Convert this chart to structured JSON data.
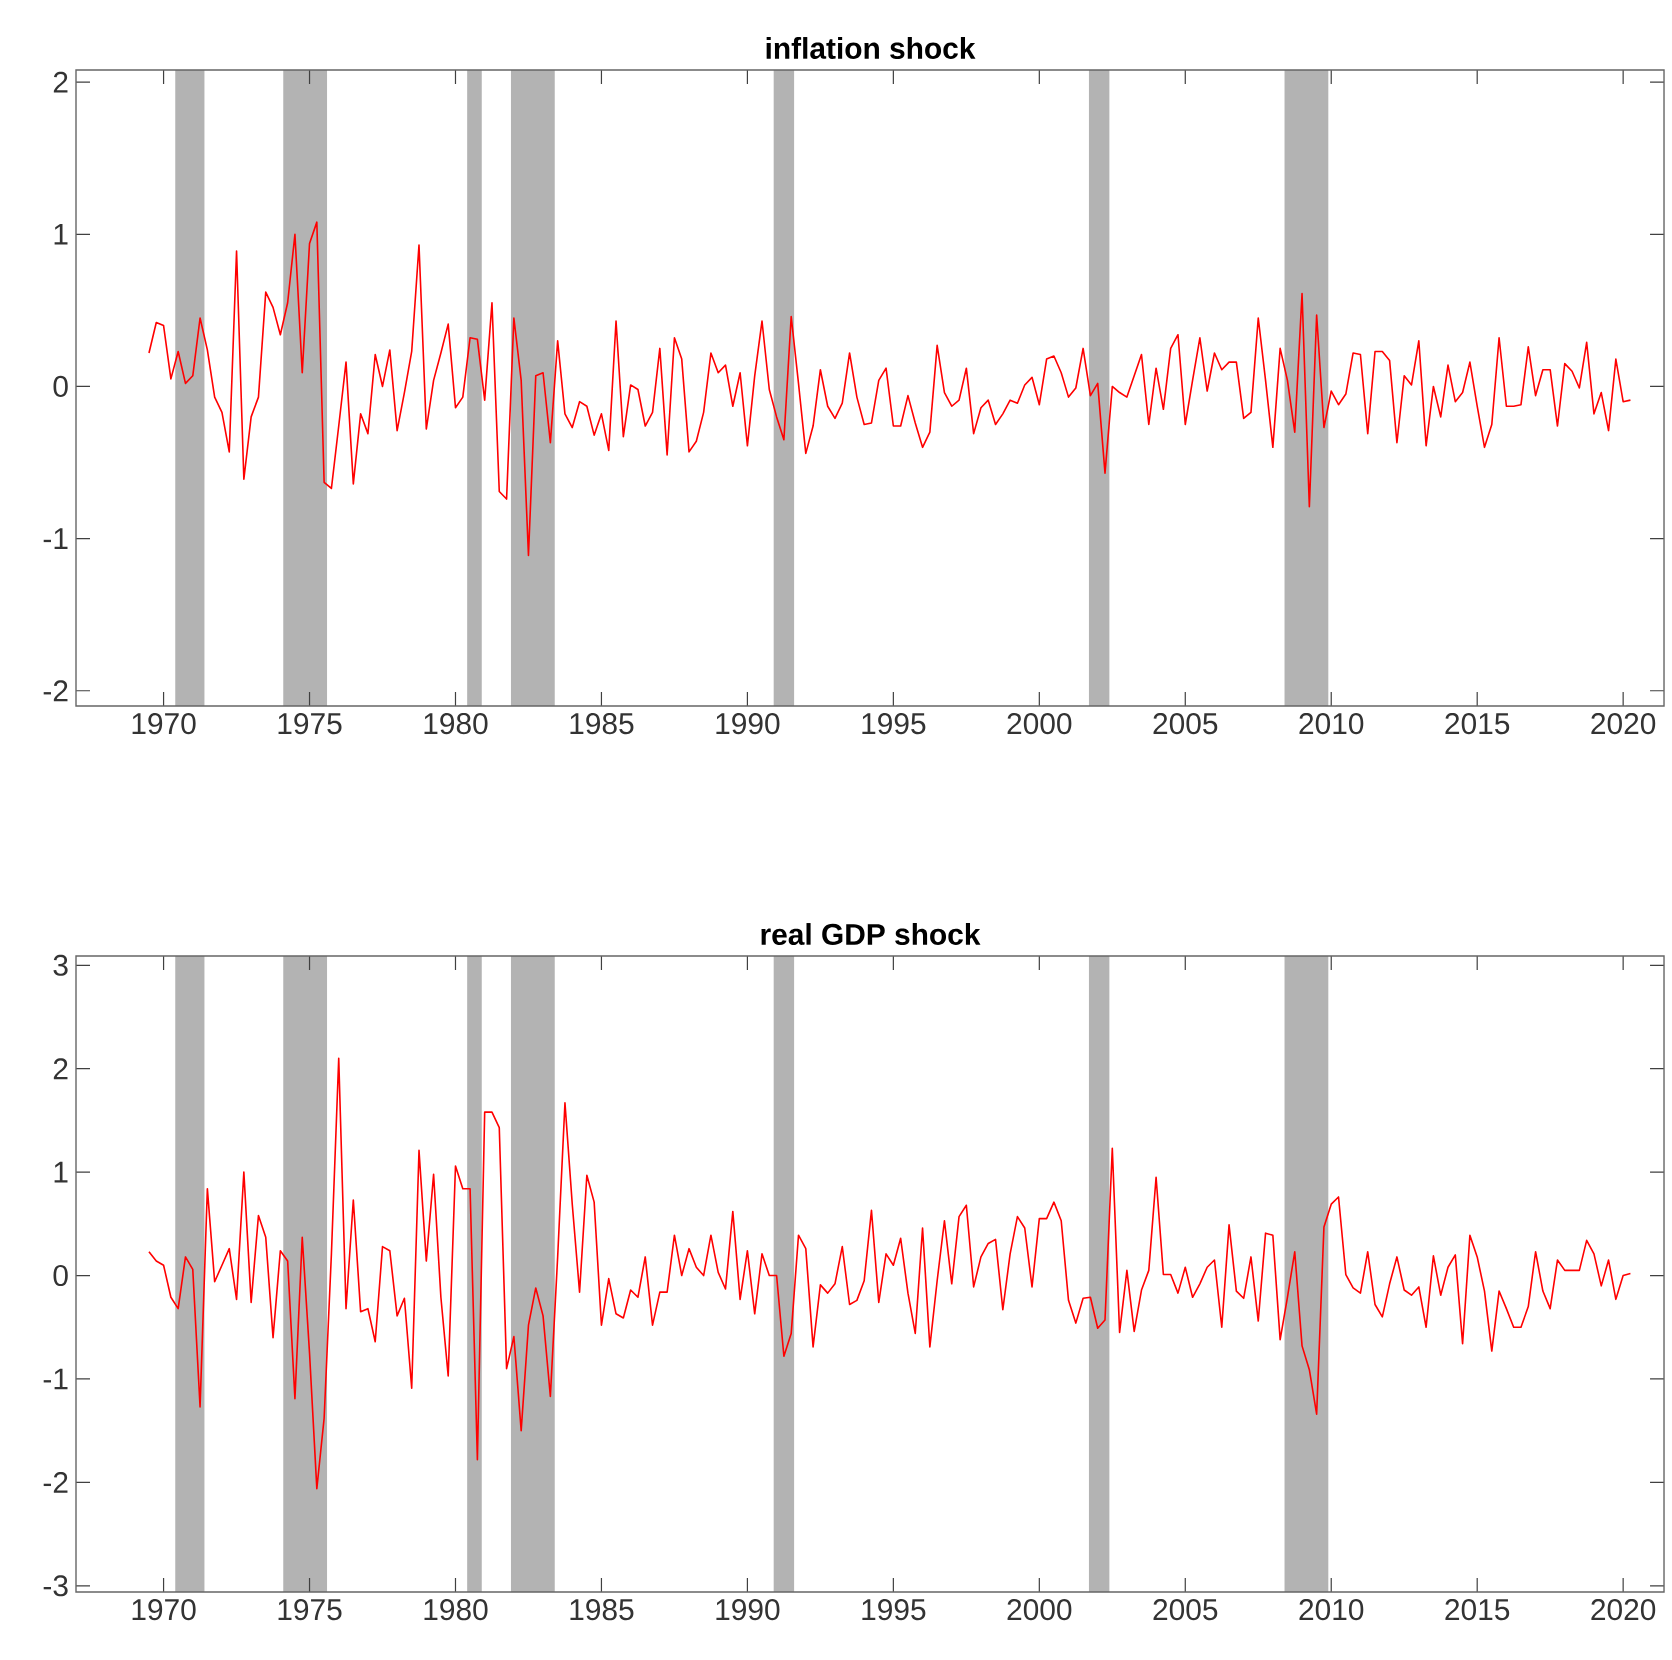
{
  "chart_data": [
    {
      "type": "line",
      "title": "inflation shock",
      "line_style": "solid",
      "xlim": [
        1967,
        2021.4
      ],
      "xticks": [
        1970,
        1975,
        1980,
        1985,
        1990,
        1995,
        2000,
        2005,
        2010,
        2015,
        2020
      ],
      "ylim": [
        -2.1,
        2.08
      ],
      "yticks": [
        -2,
        -1,
        0,
        1,
        2
      ],
      "bands": [
        {
          "axis": "x",
          "from": 1970.4,
          "to": 1971.4,
          "color": "#b3b3b3"
        },
        {
          "axis": "x",
          "from": 1974.1,
          "to": 1975.6,
          "color": "#b3b3b3"
        },
        {
          "axis": "x",
          "from": 1980.4,
          "to": 1980.9,
          "color": "#b3b3b3"
        },
        {
          "axis": "x",
          "from": 1981.9,
          "to": 1983.4,
          "color": "#b3b3b3"
        },
        {
          "axis": "x",
          "from": 1990.9,
          "to": 1991.6,
          "color": "#b3b3b3"
        },
        {
          "axis": "x",
          "from": 2001.7,
          "to": 2002.4,
          "color": "#b3b3b3"
        },
        {
          "axis": "x",
          "from": 2008.4,
          "to": 2009.9,
          "color": "#b3b3b3"
        }
      ],
      "x": [
        1969.5,
        1969.75,
        1970,
        1970.25,
        1970.5,
        1970.75,
        1971,
        1971.25,
        1971.5,
        1971.75,
        1972,
        1972.25,
        1972.5,
        1972.75,
        1973,
        1973.25,
        1973.5,
        1973.75,
        1974,
        1974.25,
        1974.5,
        1974.75,
        1975,
        1975.25,
        1975.5,
        1975.75,
        1976,
        1976.25,
        1976.5,
        1976.75,
        1977,
        1977.25,
        1977.5,
        1977.75,
        1978,
        1978.25,
        1978.5,
        1978.75,
        1979,
        1979.25,
        1979.5,
        1979.75,
        1980,
        1980.25,
        1980.5,
        1980.75,
        1981,
        1981.25,
        1981.5,
        1981.75,
        1982,
        1982.25,
        1982.5,
        1982.75,
        1983,
        1983.25,
        1983.5,
        1983.75,
        1984,
        1984.25,
        1984.5,
        1984.75,
        1985,
        1985.25,
        1985.5,
        1985.75,
        1986,
        1986.25,
        1986.5,
        1986.75,
        1987,
        1987.25,
        1987.5,
        1987.75,
        1988,
        1988.25,
        1988.5,
        1988.75,
        1989,
        1989.25,
        1989.5,
        1989.75,
        1990,
        1990.25,
        1990.5,
        1990.75,
        1991,
        1991.25,
        1991.5,
        1991.75,
        1992,
        1992.25,
        1992.5,
        1992.75,
        1993,
        1993.25,
        1993.5,
        1993.75,
        1994,
        1994.25,
        1994.5,
        1994.75,
        1995,
        1995.25,
        1995.5,
        1995.75,
        1996,
        1996.25,
        1996.5,
        1996.75,
        1997,
        1997.25,
        1997.5,
        1997.75,
        1998,
        1998.25,
        1998.5,
        1998.75,
        1999,
        1999.25,
        1999.5,
        1999.75,
        2000,
        2000.25,
        2000.5,
        2000.75,
        2001,
        2001.25,
        2001.5,
        2001.75,
        2002,
        2002.25,
        2002.5,
        2002.75,
        2003,
        2003.25,
        2003.5,
        2003.75,
        2004,
        2004.25,
        2004.5,
        2004.75,
        2005,
        2005.25,
        2005.5,
        2005.75,
        2006,
        2006.25,
        2006.5,
        2006.75,
        2007,
        2007.25,
        2007.5,
        2007.75,
        2008,
        2008.25,
        2008.5,
        2008.75,
        2009,
        2009.25,
        2009.5,
        2009.75,
        2010,
        2010.25,
        2010.5,
        2010.75,
        2011,
        2011.25,
        2011.5,
        2011.75,
        2012,
        2012.25,
        2012.5,
        2012.75,
        2013,
        2013.25,
        2013.5,
        2013.75,
        2014,
        2014.25,
        2014.5,
        2014.75,
        2015,
        2015.25,
        2015.5,
        2015.75,
        2016,
        2016.25,
        2016.5,
        2016.75,
        2017,
        2017.25,
        2017.5,
        2017.75,
        2018,
        2018.25,
        2018.5,
        2018.75,
        2019,
        2019.25,
        2019.5,
        2019.75,
        2020,
        2020.25
      ],
      "series": [
        {
          "color": "#ff0000",
          "values": [
            0.22,
            0.42,
            0.4,
            0.05,
            0.23,
            0.02,
            0.07,
            0.45,
            0.24,
            -0.07,
            -0.17,
            -0.43,
            0.89,
            -0.61,
            -0.2,
            -0.07,
            0.62,
            0.52,
            0.34,
            0.55,
            1.0,
            0.09,
            0.94,
            1.08,
            -0.63,
            -0.67,
            -0.26,
            0.16,
            -0.64,
            -0.18,
            -0.31,
            0.21,
            0.0,
            0.24,
            -0.29,
            -0.04,
            0.23,
            0.93,
            -0.28,
            0.04,
            0.22,
            0.41,
            -0.14,
            -0.07,
            0.32,
            0.31,
            -0.09,
            0.55,
            -0.69,
            -0.74,
            0.45,
            0.04,
            -1.11,
            0.07,
            0.09,
            -0.37,
            0.3,
            -0.18,
            -0.27,
            -0.1,
            -0.13,
            -0.32,
            -0.18,
            -0.42,
            0.43,
            -0.33,
            0.01,
            -0.02,
            -0.26,
            -0.17,
            0.25,
            -0.45,
            0.32,
            0.18,
            -0.43,
            -0.36,
            -0.17,
            0.22,
            0.09,
            0.14,
            -0.13,
            0.09,
            -0.39,
            0.07,
            0.43,
            -0.02,
            -0.2,
            -0.35,
            0.46,
            0.02,
            -0.44,
            -0.26,
            0.11,
            -0.13,
            -0.21,
            -0.11,
            0.22,
            -0.07,
            -0.25,
            -0.24,
            0.04,
            0.12,
            -0.26,
            -0.26,
            -0.06,
            -0.24,
            -0.4,
            -0.3,
            0.27,
            -0.04,
            -0.13,
            -0.09,
            0.12,
            -0.31,
            -0.14,
            -0.09,
            -0.25,
            -0.18,
            -0.09,
            -0.11,
            0.01,
            0.06,
            -0.12,
            0.18,
            0.2,
            0.09,
            -0.07,
            -0.01,
            0.25,
            -0.06,
            0.02,
            -0.57,
            0.0,
            -0.04,
            -0.07,
            0.07,
            0.21,
            -0.25,
            0.12,
            -0.15,
            0.25,
            0.34,
            -0.25,
            0.04,
            0.32,
            -0.03,
            0.22,
            0.11,
            0.16,
            0.16,
            -0.21,
            -0.17,
            0.45,
            0.04,
            -0.4,
            0.25,
            0.04,
            -0.3,
            0.61,
            -0.79,
            0.47,
            -0.27,
            -0.03,
            -0.12,
            -0.05,
            0.22,
            0.21,
            -0.31,
            0.23,
            0.23,
            0.17,
            -0.37,
            0.07,
            0.01,
            0.3,
            -0.39,
            0.0,
            -0.2,
            0.14,
            -0.1,
            -0.04,
            0.16,
            -0.13,
            -0.4,
            -0.25,
            0.32,
            -0.13,
            -0.13,
            -0.12,
            0.26,
            -0.06,
            0.11,
            0.11,
            -0.26,
            0.15,
            0.1,
            -0.01,
            0.29,
            -0.18,
            -0.04,
            -0.29,
            0.18,
            -0.1,
            -0.09
          ]
        }
      ]
    },
    {
      "type": "line",
      "title": "real GDP shock",
      "line_style": "solid",
      "xlim": [
        1967,
        2021.4
      ],
      "xticks": [
        1970,
        1975,
        1980,
        1985,
        1990,
        1995,
        2000,
        2005,
        2010,
        2015,
        2020
      ],
      "ylim": [
        -3.06,
        3.09
      ],
      "yticks": [
        -3,
        -2,
        -1,
        0,
        1,
        2,
        3
      ],
      "bands": [
        {
          "axis": "x",
          "from": 1970.4,
          "to": 1971.4,
          "color": "#b3b3b3"
        },
        {
          "axis": "x",
          "from": 1974.1,
          "to": 1975.6,
          "color": "#b3b3b3"
        },
        {
          "axis": "x",
          "from": 1980.4,
          "to": 1980.9,
          "color": "#b3b3b3"
        },
        {
          "axis": "x",
          "from": 1981.9,
          "to": 1983.4,
          "color": "#b3b3b3"
        },
        {
          "axis": "x",
          "from": 1990.9,
          "to": 1991.6,
          "color": "#b3b3b3"
        },
        {
          "axis": "x",
          "from": 2001.7,
          "to": 2002.4,
          "color": "#b3b3b3"
        },
        {
          "axis": "x",
          "from": 2008.4,
          "to": 2009.9,
          "color": "#b3b3b3"
        }
      ],
      "x": [
        1969.5,
        1969.75,
        1970,
        1970.25,
        1970.5,
        1970.75,
        1971,
        1971.25,
        1971.5,
        1971.75,
        1972,
        1972.25,
        1972.5,
        1972.75,
        1973,
        1973.25,
        1973.5,
        1973.75,
        1974,
        1974.25,
        1974.5,
        1974.75,
        1975,
        1975.25,
        1975.5,
        1975.75,
        1976,
        1976.25,
        1976.5,
        1976.75,
        1977,
        1977.25,
        1977.5,
        1977.75,
        1978,
        1978.25,
        1978.5,
        1978.75,
        1979,
        1979.25,
        1979.5,
        1979.75,
        1980,
        1980.25,
        1980.5,
        1980.75,
        1981,
        1981.25,
        1981.5,
        1981.75,
        1982,
        1982.25,
        1982.5,
        1982.75,
        1983,
        1983.25,
        1983.5,
        1983.75,
        1984,
        1984.25,
        1984.5,
        1984.75,
        1985,
        1985.25,
        1985.5,
        1985.75,
        1986,
        1986.25,
        1986.5,
        1986.75,
        1987,
        1987.25,
        1987.5,
        1987.75,
        1988,
        1988.25,
        1988.5,
        1988.75,
        1989,
        1989.25,
        1989.5,
        1989.75,
        1990,
        1990.25,
        1990.5,
        1990.75,
        1991,
        1991.25,
        1991.5,
        1991.75,
        1992,
        1992.25,
        1992.5,
        1992.75,
        1993,
        1993.25,
        1993.5,
        1993.75,
        1994,
        1994.25,
        1994.5,
        1994.75,
        1995,
        1995.25,
        1995.5,
        1995.75,
        1996,
        1996.25,
        1996.5,
        1996.75,
        1997,
        1997.25,
        1997.5,
        1997.75,
        1998,
        1998.25,
        1998.5,
        1998.75,
        1999,
        1999.25,
        1999.5,
        1999.75,
        2000,
        2000.25,
        2000.5,
        2000.75,
        2001,
        2001.25,
        2001.5,
        2001.75,
        2002,
        2002.25,
        2002.5,
        2002.75,
        2003,
        2003.25,
        2003.5,
        2003.75,
        2004,
        2004.25,
        2004.5,
        2004.75,
        2005,
        2005.25,
        2005.5,
        2005.75,
        2006,
        2006.25,
        2006.5,
        2006.75,
        2007,
        2007.25,
        2007.5,
        2007.75,
        2008,
        2008.25,
        2008.5,
        2008.75,
        2009,
        2009.25,
        2009.5,
        2009.75,
        2010,
        2010.25,
        2010.5,
        2010.75,
        2011,
        2011.25,
        2011.5,
        2011.75,
        2012,
        2012.25,
        2012.5,
        2012.75,
        2013,
        2013.25,
        2013.5,
        2013.75,
        2014,
        2014.25,
        2014.5,
        2014.75,
        2015,
        2015.25,
        2015.5,
        2015.75,
        2016,
        2016.25,
        2016.5,
        2016.75,
        2017,
        2017.25,
        2017.5,
        2017.75,
        2018,
        2018.25,
        2018.5,
        2018.75,
        2019,
        2019.25,
        2019.5,
        2019.75,
        2020,
        2020.25
      ],
      "series": [
        {
          "color": "#ff0000",
          "values": [
            0.23,
            0.14,
            0.1,
            -0.21,
            -0.32,
            0.18,
            0.06,
            -1.27,
            0.84,
            -0.06,
            0.1,
            0.26,
            -0.23,
            1.0,
            -0.26,
            0.58,
            0.37,
            -0.6,
            0.24,
            0.14,
            -1.19,
            0.37,
            -0.75,
            -2.06,
            -1.38,
            0.21,
            2.1,
            -0.32,
            0.73,
            -0.35,
            -0.32,
            -0.64,
            0.28,
            0.24,
            -0.39,
            -0.22,
            -1.09,
            1.21,
            0.14,
            0.98,
            -0.21,
            -0.97,
            1.06,
            0.84,
            0.84,
            -1.78,
            1.58,
            1.58,
            1.43,
            -0.9,
            -0.59,
            -1.5,
            -0.48,
            -0.12,
            -0.39,
            -1.17,
            0.18,
            1.67,
            0.69,
            -0.16,
            0.97,
            0.71,
            -0.48,
            -0.03,
            -0.37,
            -0.41,
            -0.14,
            -0.21,
            0.18,
            -0.48,
            -0.16,
            -0.16,
            0.39,
            0.0,
            0.26,
            0.08,
            0.0,
            0.39,
            0.03,
            -0.13,
            0.62,
            -0.23,
            0.24,
            -0.37,
            0.21,
            0.0,
            0.0,
            -0.78,
            -0.56,
            0.39,
            0.26,
            -0.69,
            -0.09,
            -0.17,
            -0.08,
            0.28,
            -0.28,
            -0.24,
            -0.05,
            0.63,
            -0.26,
            0.21,
            0.1,
            0.36,
            -0.17,
            -0.56,
            0.46,
            -0.69,
            -0.05,
            0.53,
            -0.08,
            0.57,
            0.68,
            -0.11,
            0.18,
            0.31,
            0.35,
            -0.33,
            0.21,
            0.57,
            0.46,
            -0.11,
            0.55,
            0.55,
            0.71,
            0.53,
            -0.24,
            -0.46,
            -0.22,
            -0.21,
            -0.51,
            -0.43,
            1.23,
            -0.55,
            0.05,
            -0.54,
            -0.14,
            0.05,
            0.95,
            0.01,
            0.01,
            -0.17,
            0.08,
            -0.21,
            -0.08,
            0.08,
            0.15,
            -0.5,
            0.49,
            -0.15,
            -0.22,
            0.18,
            -0.44,
            0.41,
            0.39,
            -0.62,
            -0.21,
            0.23,
            -0.68,
            -0.91,
            -1.34,
            0.47,
            0.69,
            0.76,
            0.01,
            -0.12,
            -0.17,
            0.23,
            -0.28,
            -0.4,
            -0.08,
            0.18,
            -0.14,
            -0.19,
            -0.11,
            -0.5,
            0.19,
            -0.19,
            0.08,
            0.2,
            -0.66,
            0.39,
            0.18,
            -0.15,
            -0.73,
            -0.15,
            -0.32,
            -0.5,
            -0.5,
            -0.3,
            0.23,
            -0.15,
            -0.32,
            0.15,
            0.05,
            0.05,
            0.05,
            0.34,
            0.21,
            -0.1,
            0.15,
            -0.23,
            0.0,
            0.02
          ]
        }
      ]
    }
  ]
}
